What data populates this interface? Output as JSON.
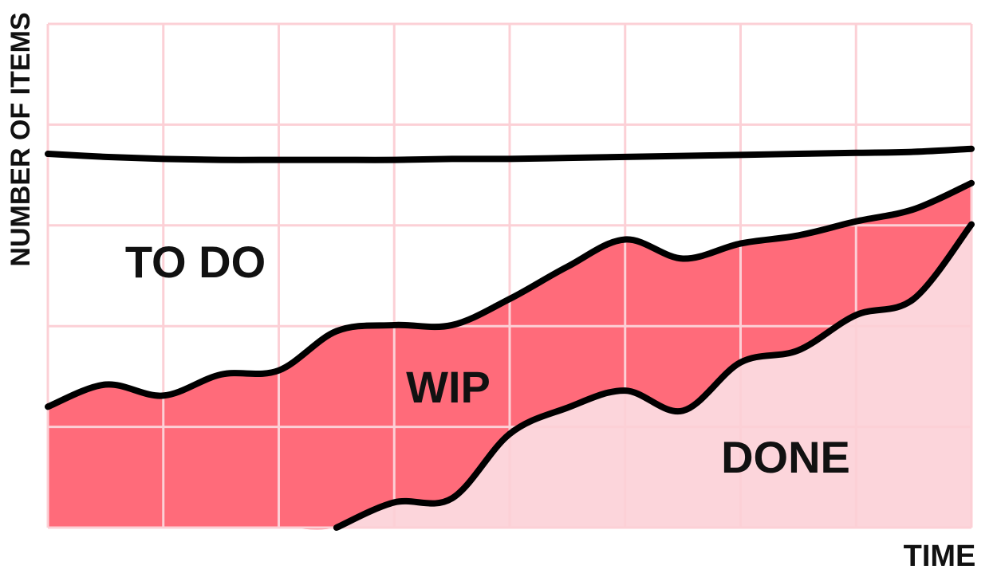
{
  "chart_data": {
    "type": "cumulative-flow",
    "y_label": "NUMBER OF ITEMS",
    "x_label": "TIME",
    "x": [
      0,
      0.5,
      1,
      1.5,
      2,
      2.5,
      3,
      3.5,
      4,
      4.5,
      5,
      5.5,
      6,
      6.5,
      7,
      7.5,
      8
    ],
    "xlim": [
      0,
      8
    ],
    "ylim": [
      0,
      5
    ],
    "grid": true,
    "grid_color": "#fcd0d6",
    "line_color": "#000000",
    "series": [
      {
        "name": "DONE",
        "color": "#fcd5db",
        "values": [
          null,
          null,
          null,
          null,
          null,
          0,
          0.25,
          0.29,
          0.93,
          1.19,
          1.36,
          1.16,
          1.64,
          1.76,
          2.11,
          2.27,
          3.01
        ]
      },
      {
        "name": "WIP",
        "color": "#ff6b7a",
        "values": [
          1.2,
          1.42,
          1.31,
          1.52,
          1.56,
          1.95,
          1.76,
          1.72,
          1.34,
          1.4,
          1.5,
          1.51,
          1.18,
          1.14,
          0.93,
          0.89,
          0.41
        ]
      },
      {
        "name": "TO DO",
        "color": "#ffffff",
        "values": [
          2.51,
          2.26,
          2.35,
          2.13,
          2.09,
          1.7,
          1.64,
          1.65,
          1.39,
          1.08,
          0.82,
          1.02,
          0.88,
          0.81,
          0.68,
          0.57,
          0.34
        ]
      }
    ]
  }
}
